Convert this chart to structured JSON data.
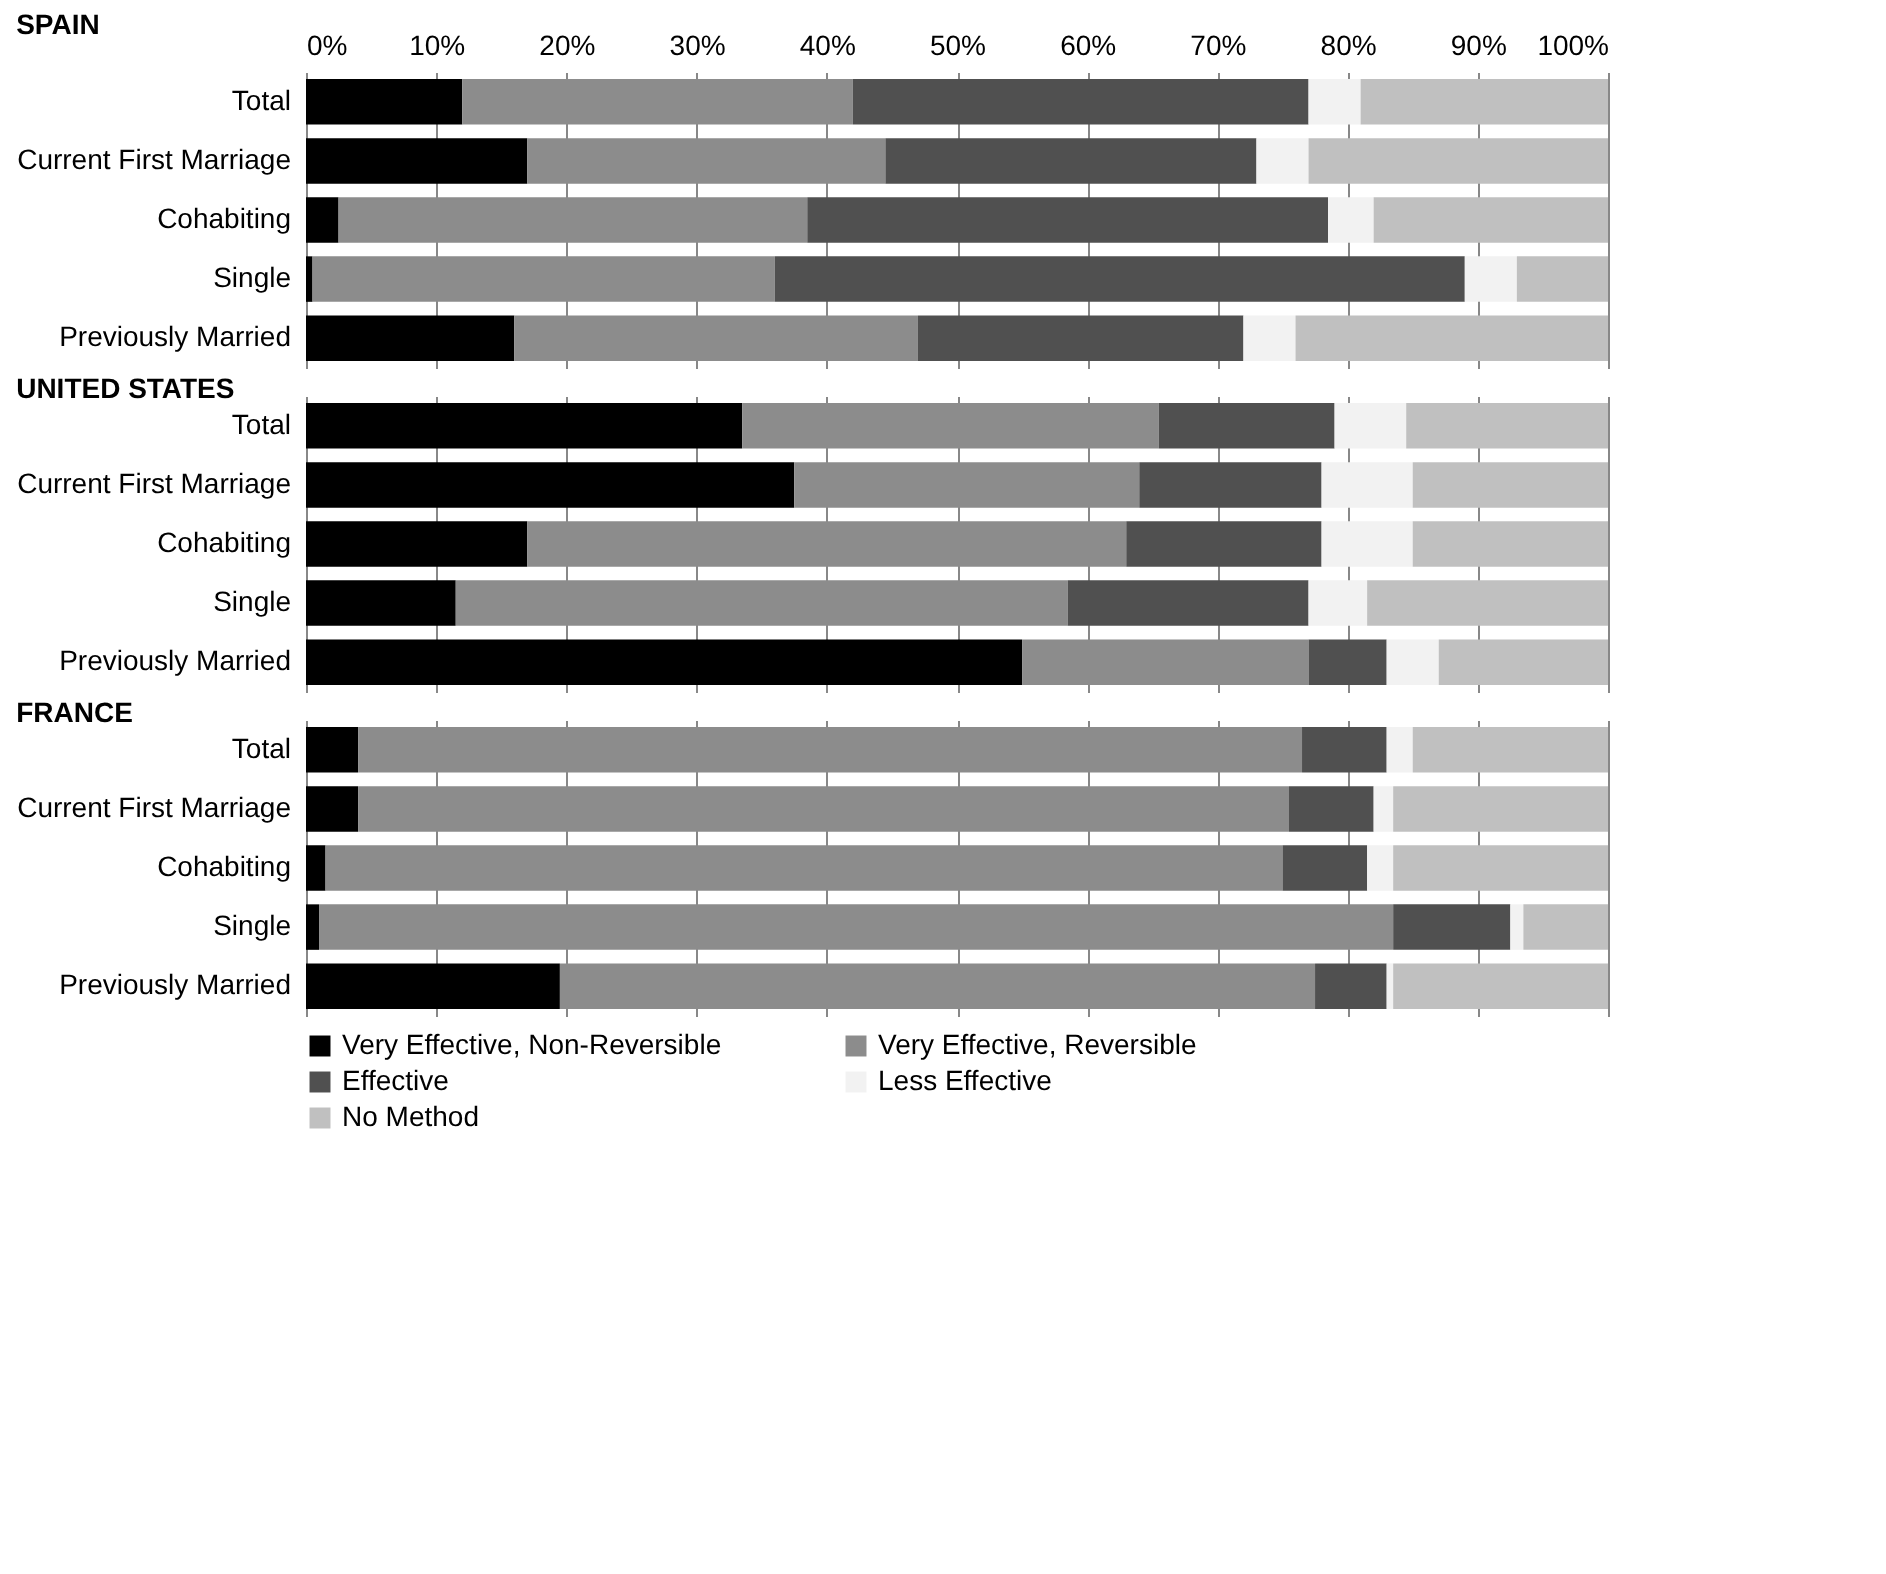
{
  "chart_data": [
    {
      "type": "bar",
      "orientation": "horizontal",
      "stacked": true,
      "title": "SPAIN",
      "categories": [
        "Total",
        "Current First Marriage",
        "Cohabiting",
        "Single",
        "Previously Married"
      ],
      "xlim": [
        0,
        100
      ],
      "xticks": [
        {
          "value": 0,
          "label": "0%"
        },
        {
          "value": 10,
          "label": "10%"
        },
        {
          "value": 20,
          "label": "20%"
        },
        {
          "value": 30,
          "label": "30%"
        },
        {
          "value": 40,
          "label": "40%"
        },
        {
          "value": 50,
          "label": "50%"
        },
        {
          "value": 60,
          "label": "60%"
        },
        {
          "value": 70,
          "label": "70%"
        },
        {
          "value": 80,
          "label": "80%"
        },
        {
          "value": 90,
          "label": "90%"
        },
        {
          "value": 100,
          "label": "100%"
        }
      ],
      "grid": "x",
      "series": [
        {
          "color": "#000000",
          "values": [
            12,
            17,
            2.5,
            0.5,
            16
          ]
        },
        {
          "color": "#8c8c8c",
          "values": [
            30,
            27.5,
            36,
            35.5,
            31
          ]
        },
        {
          "color": "#505050",
          "values": [
            35,
            28.5,
            40,
            53,
            25
          ]
        },
        {
          "color": "#f2f2f2",
          "values": [
            4,
            4,
            3.5,
            4,
            4
          ]
        },
        {
          "color": "#c0c0c0",
          "values": [
            19,
            23,
            18,
            7,
            24
          ]
        }
      ]
    },
    {
      "type": "bar",
      "orientation": "horizontal",
      "stacked": true,
      "title": "UNITED STATES",
      "categories": [
        "Total",
        "Current First Marriage",
        "Cohabiting",
        "Single",
        "Previously Married"
      ],
      "xlim": [
        0,
        100
      ],
      "xticks": [
        0,
        10,
        20,
        30,
        40,
        50,
        60,
        70,
        80,
        90,
        100
      ],
      "tick_labels": "y",
      "grid": "x",
      "series": [
        {
          "color": "#000000",
          "values": [
            33.5,
            37.5,
            17,
            11.5,
            55
          ]
        },
        {
          "color": "#8c8c8c",
          "values": [
            32,
            26.5,
            46,
            47,
            22
          ]
        },
        {
          "color": "#505050",
          "values": [
            13.5,
            14,
            15,
            18.5,
            6
          ]
        },
        {
          "color": "#f2f2f2",
          "values": [
            5.5,
            7,
            7,
            4.5,
            4
          ]
        },
        {
          "color": "#c0c0c0",
          "values": [
            15.5,
            15,
            15,
            18.5,
            13
          ]
        }
      ]
    },
    {
      "type": "bar",
      "orientation": "horizontal",
      "stacked": true,
      "title": "FRANCE",
      "categories": [
        "Total",
        "Current First Marriage",
        "Cohabiting",
        "Single",
        "Previously Married"
      ],
      "xlim": [
        0,
        100
      ],
      "xticks": [
        0,
        10,
        20,
        30,
        40,
        50,
        60,
        70,
        80,
        90,
        100
      ],
      "tick_labels": "y",
      "grid": "x",
      "legend": "bottom",
      "series": [
        {
          "name": "Very Effective, Non-Reversible",
          "color": "#000000",
          "values": [
            4,
            4,
            1.5,
            1,
            19.5
          ]
        },
        {
          "name": "Very Effective, Reversible",
          "color": "#8c8c8c",
          "values": [
            72.5,
            71.5,
            73.5,
            82.5,
            58
          ]
        },
        {
          "name": "Effective",
          "color": "#505050",
          "values": [
            6.5,
            6.5,
            6.5,
            9,
            5.5
          ]
        },
        {
          "name": "Less Effective",
          "color": "#f2f2f2",
          "values": [
            2,
            1.5,
            2,
            1,
            0.5
          ]
        },
        {
          "name": "No Method",
          "color": "#c0c0c0",
          "values": [
            15,
            16.5,
            16.5,
            6.5,
            16.5
          ]
        }
      ]
    }
  ]
}
